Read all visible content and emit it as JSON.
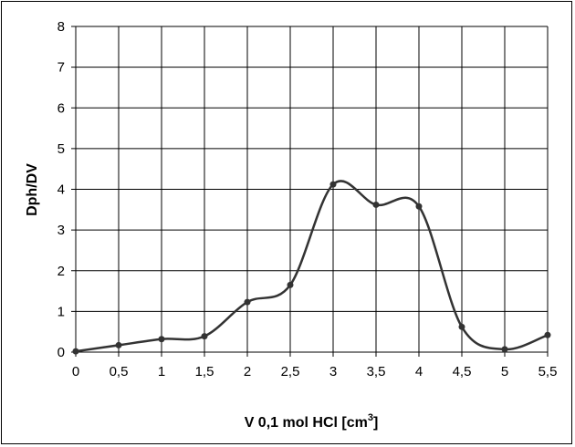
{
  "chart_data": {
    "type": "line",
    "title": "",
    "xlabel": "V 0,1 mol HCl [cm",
    "xlabel_sup": "3",
    "xlabel_close": "]",
    "ylabel": "Dph/DV",
    "x": [
      0,
      0.5,
      1,
      1.5,
      2,
      2.5,
      3,
      3.5,
      4,
      4.5,
      5,
      5.5
    ],
    "values": [
      0.02,
      0.17,
      0.32,
      0.39,
      1.23,
      1.65,
      4.12,
      3.62,
      3.58,
      0.62,
      0.07,
      0.42
    ],
    "xlim": [
      0,
      5.5
    ],
    "ylim": [
      0,
      8
    ],
    "x_ticks": [
      "0",
      "0,5",
      "1",
      "1,5",
      "2",
      "2,5",
      "3",
      "3,5",
      "4",
      "4,5",
      "5",
      "5,5"
    ],
    "y_ticks": [
      "0",
      "1",
      "2",
      "3",
      "4",
      "5",
      "6",
      "7",
      "8"
    ],
    "grid": true,
    "line_color": "#333333",
    "marker_color": "#333333"
  }
}
